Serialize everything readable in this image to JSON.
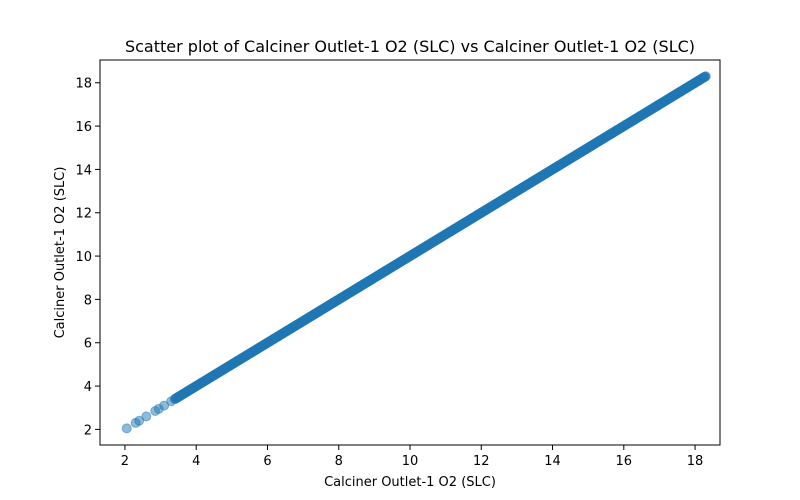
{
  "chart_data": {
    "type": "scatter",
    "title": "Scatter plot of Calciner Outlet-1 O2 (SLC) vs Calciner Outlet-1 O2 (SLC)",
    "xlabel": "Calciner Outlet-1 O2 (SLC)",
    "ylabel": "Calciner Outlet-1 O2 (SLC)",
    "xlim": [
      1.3,
      18.7
    ],
    "ylim": [
      1.28,
      19.05
    ],
    "x_ticks": [
      2,
      4,
      6,
      8,
      10,
      12,
      14,
      16,
      18
    ],
    "y_ticks": [
      2,
      4,
      6,
      8,
      10,
      12,
      14,
      16,
      18
    ],
    "x_tick_labels": [
      "2",
      "4",
      "6",
      "8",
      "10",
      "12",
      "14",
      "16",
      "18"
    ],
    "y_tick_labels": [
      "2",
      "4",
      "6",
      "8",
      "10",
      "12",
      "14",
      "16",
      "18"
    ],
    "grid": false,
    "legend": "none",
    "point_color": "#1f77b4",
    "point_alpha": 0.5,
    "sparse_points": [
      {
        "x": 2.05,
        "y": 2.05
      },
      {
        "x": 2.3,
        "y": 2.3
      },
      {
        "x": 2.4,
        "y": 2.4
      },
      {
        "x": 2.6,
        "y": 2.6
      },
      {
        "x": 2.85,
        "y": 2.85
      },
      {
        "x": 2.95,
        "y": 2.95
      },
      {
        "x": 3.1,
        "y": 3.1
      },
      {
        "x": 3.3,
        "y": 3.3
      }
    ],
    "dense_range": {
      "start": 3.4,
      "end": 18.3,
      "relation": "y = x"
    }
  }
}
